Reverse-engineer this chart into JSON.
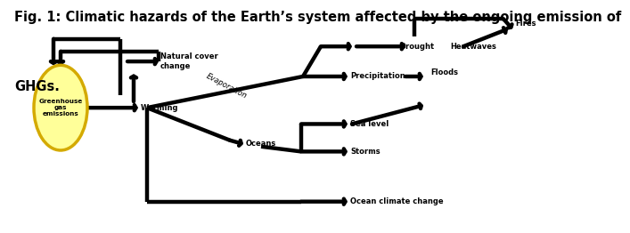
{
  "title_line1": "Fig. 1: Climatic hazards of the Earth’s system affected by the ongoing emission of",
  "title_line2": "GHGs.",
  "title_fontsize": 10.5,
  "background_color": "#ffffff",
  "arrow_color": "#000000",
  "lw": 3.2,
  "circle_fill": "#ffff99",
  "circle_edge": "#d4aa00",
  "circle_label": "Greenhouse\ngas\nemissions",
  "labels": {
    "warming": "Warming",
    "nat_cover": "Natural cover\nchange",
    "oceans": "Oceans",
    "evaporation": "Evaporation",
    "ocean_cc": "Ocean climate change",
    "storms": "Storms",
    "sea_level": "Sea level",
    "precip": "Precipitation",
    "floods": "Floods",
    "drought": "Drought",
    "heatwaves": "Heatwaves",
    "fires": "Fires"
  },
  "fs": 6.0
}
